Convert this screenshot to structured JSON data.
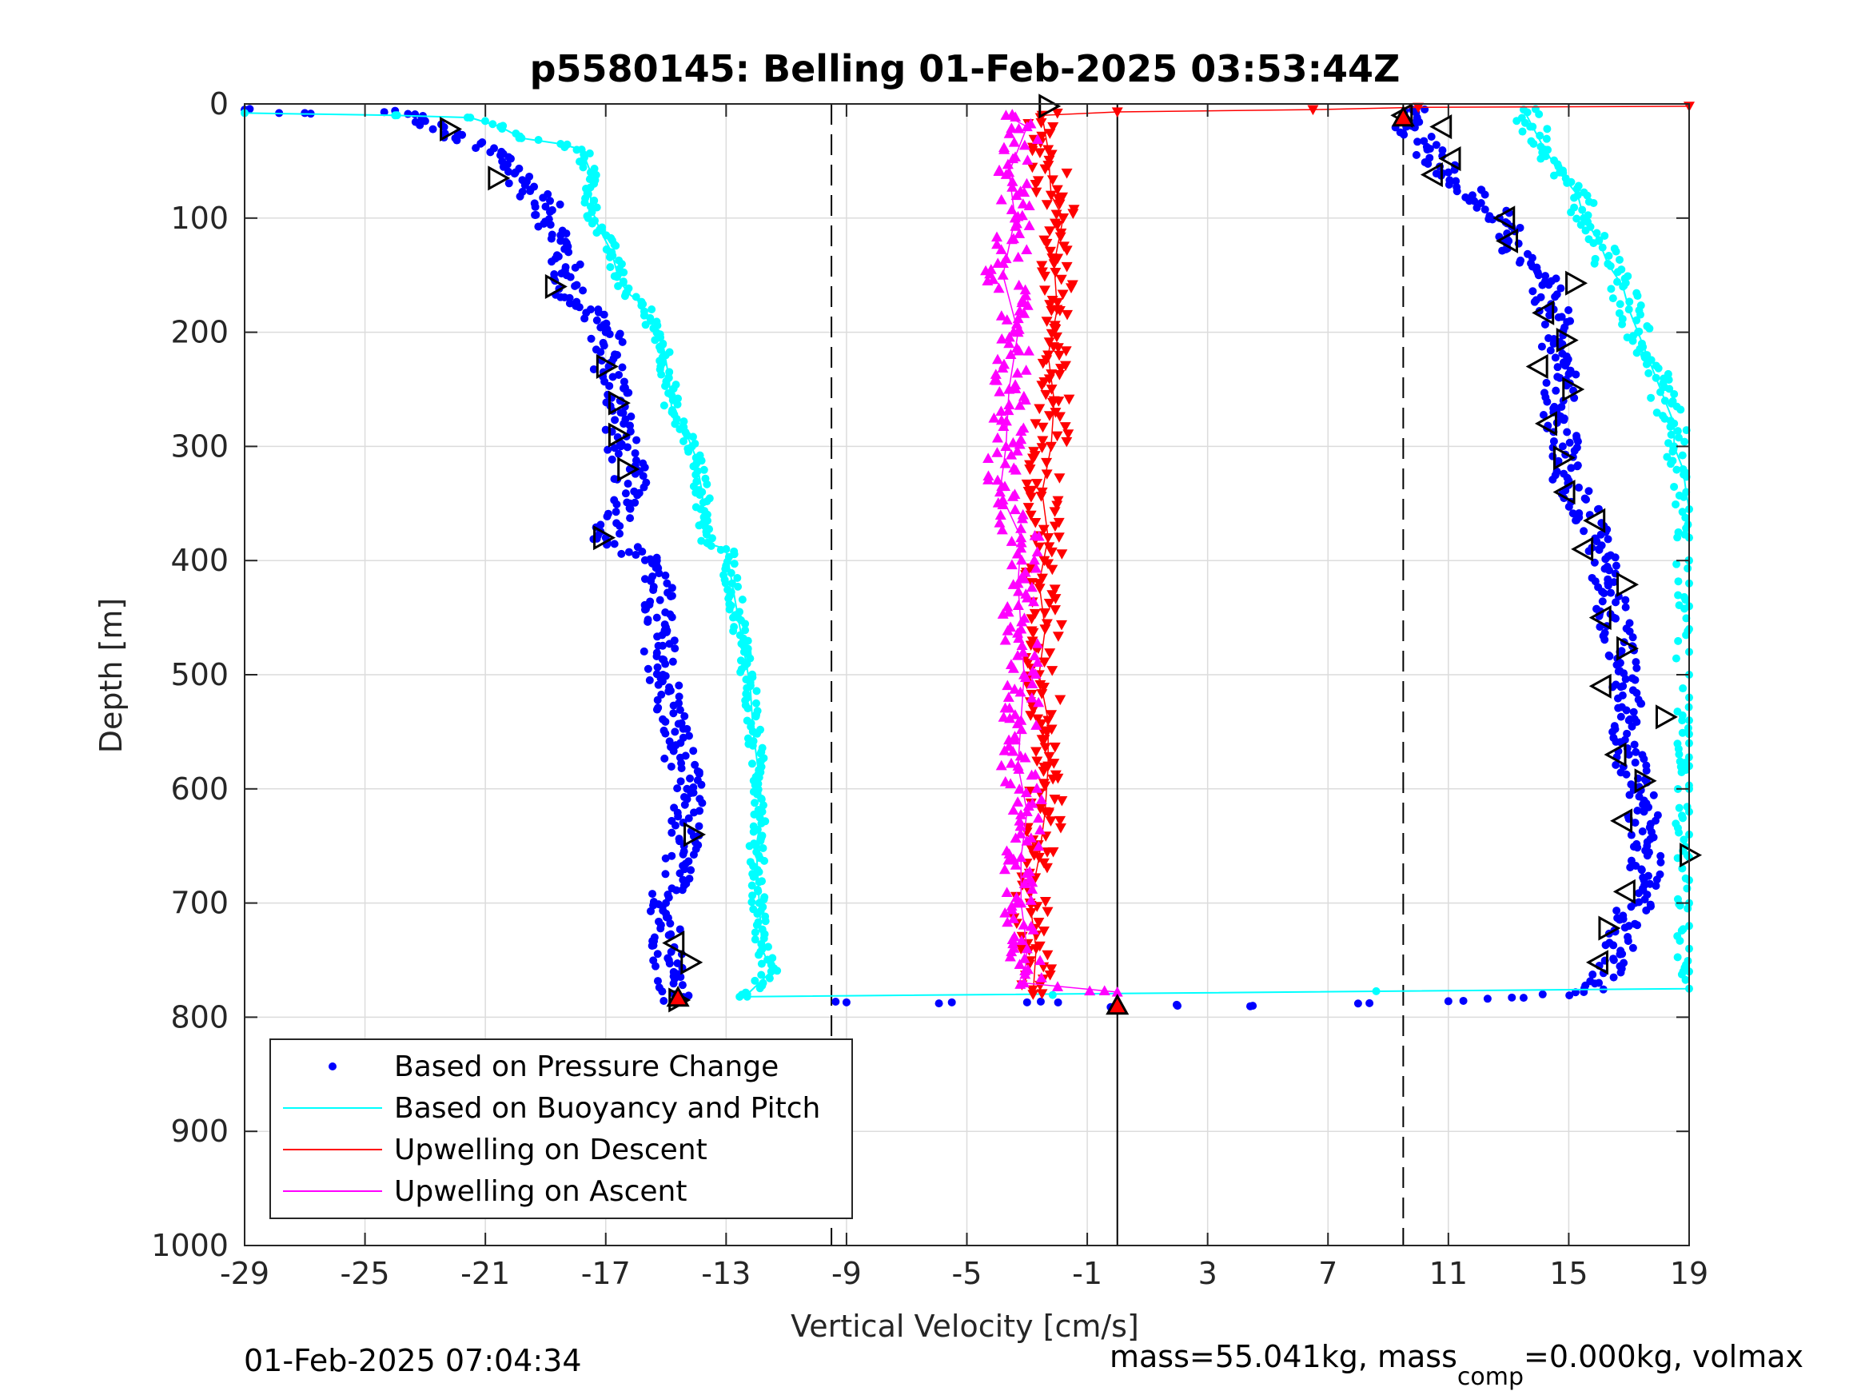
{
  "chart_data": {
    "type": "scatter",
    "title": "p5580145: Belling 01-Feb-2025 03:53:44Z",
    "xlabel": "Vertical Velocity [cm/s]",
    "ylabel": "Depth [m]",
    "xlim": [
      -29,
      19
    ],
    "ylim": [
      0,
      1000
    ],
    "y_reversed": true,
    "grid": true,
    "xticks": [
      -29,
      -25,
      -21,
      -17,
      -13,
      -9,
      -5,
      -1,
      3,
      7,
      11,
      15,
      19
    ],
    "xtick_labels": [
      "-29",
      "-25",
      "-21",
      "-17",
      "-13",
      "-9",
      "-5",
      "-1",
      "3",
      "7",
      "11",
      "15",
      "19"
    ],
    "yticks": [
      0,
      100,
      200,
      300,
      400,
      500,
      600,
      700,
      800,
      900,
      1000
    ],
    "ytick_labels": [
      "0",
      "100",
      "200",
      "300",
      "400",
      "500",
      "600",
      "700",
      "800",
      "900",
      "1000"
    ],
    "reference_lines": {
      "solid_x": 0,
      "dashed_x": [
        -9.5,
        9.5
      ]
    },
    "legend": {
      "placement": "bottom-left",
      "entries": [
        {
          "label": "Based on Pressure Change",
          "color": "#0000ff",
          "marker": "dot"
        },
        {
          "label": "Based on Buoyancy and Pitch",
          "color": "#00ffff",
          "marker": "line"
        },
        {
          "label": "Upwelling on Descent",
          "color": "#ff0000",
          "marker": "line"
        },
        {
          "label": "Upwelling on Ascent",
          "color": "#ff00ff",
          "marker": "line"
        }
      ]
    },
    "series": [
      {
        "key": "pressure_descent",
        "color": "#0000ff",
        "marker": "dot",
        "points": [
          [
            -29,
            5
          ],
          [
            -27,
            8
          ],
          [
            -24,
            6
          ],
          [
            -23,
            15
          ],
          [
            -22,
            30
          ],
          [
            -20.5,
            45
          ],
          [
            -20,
            60
          ],
          [
            -19.5,
            75
          ],
          [
            -19,
            90
          ],
          [
            -18.5,
            120
          ],
          [
            -18.3,
            150
          ],
          [
            -18.2,
            170
          ],
          [
            -17.5,
            180
          ],
          [
            -17,
            200
          ],
          [
            -16.9,
            230
          ],
          [
            -16.5,
            260
          ],
          [
            -16.5,
            300
          ],
          [
            -16.2,
            320
          ],
          [
            -16.2,
            350
          ],
          [
            -17,
            380
          ],
          [
            -16,
            395
          ],
          [
            -15.3,
            400
          ],
          [
            -15.3,
            450
          ],
          [
            -15.1,
            500
          ],
          [
            -14.7,
            550
          ],
          [
            -14.3,
            600
          ],
          [
            -14.4,
            650
          ],
          [
            -15,
            700
          ],
          [
            -14.9,
            750
          ],
          [
            -14.6,
            785
          ]
        ]
      },
      {
        "key": "pressure_ascent",
        "color": "#0000ff",
        "marker": "dot",
        "points": [
          [
            -9,
            787
          ],
          [
            -5.5,
            787
          ],
          [
            -3,
            787
          ],
          [
            0,
            790
          ],
          [
            2,
            790
          ],
          [
            4.5,
            790
          ],
          [
            8,
            788
          ],
          [
            11,
            786
          ],
          [
            13.5,
            783
          ],
          [
            15.5,
            778
          ],
          [
            16,
            770
          ],
          [
            16.5,
            750
          ],
          [
            17,
            720
          ],
          [
            17.2,
            700
          ],
          [
            17.5,
            680
          ],
          [
            17.6,
            650
          ],
          [
            17.5,
            620
          ],
          [
            17.3,
            600
          ],
          [
            17,
            570
          ],
          [
            17,
            540
          ],
          [
            16.8,
            510
          ],
          [
            16.7,
            480
          ],
          [
            16.5,
            450
          ],
          [
            16.3,
            420
          ],
          [
            16,
            390
          ],
          [
            15.7,
            360
          ],
          [
            15,
            330
          ],
          [
            14.8,
            300
          ],
          [
            14.6,
            270
          ],
          [
            14.7,
            240
          ],
          [
            14.5,
            210
          ],
          [
            14.5,
            180
          ],
          [
            14,
            150
          ],
          [
            13,
            120
          ],
          [
            12.7,
            100
          ],
          [
            11.8,
            80
          ],
          [
            11,
            60
          ],
          [
            10.3,
            40
          ],
          [
            9.6,
            20
          ],
          [
            9.8,
            5
          ]
        ]
      },
      {
        "key": "buoyancy_descent",
        "color": "#00ffff",
        "marker": "line",
        "points": [
          [
            -29,
            8
          ],
          [
            -24,
            10
          ],
          [
            -21.5,
            12
          ],
          [
            -20.5,
            20
          ],
          [
            -19.8,
            30
          ],
          [
            -18.5,
            35
          ],
          [
            -17.8,
            40
          ],
          [
            -17.5,
            60
          ],
          [
            -17.5,
            90
          ],
          [
            -17.2,
            110
          ],
          [
            -16.8,
            130
          ],
          [
            -16.6,
            150
          ],
          [
            -16.3,
            165
          ],
          [
            -15.8,
            175
          ],
          [
            -15.5,
            190
          ],
          [
            -15.1,
            210
          ],
          [
            -14.9,
            240
          ],
          [
            -14.8,
            270
          ],
          [
            -14.3,
            290
          ],
          [
            -14,
            310
          ],
          [
            -13.8,
            340
          ],
          [
            -13.7,
            370
          ],
          [
            -13.6,
            385
          ],
          [
            -13,
            390
          ],
          [
            -12.8,
            420
          ],
          [
            -12.6,
            450
          ],
          [
            -12.4,
            480
          ],
          [
            -12.2,
            510
          ],
          [
            -12.1,
            550
          ],
          [
            -11.9,
            590
          ],
          [
            -11.8,
            620
          ],
          [
            -12,
            650
          ],
          [
            -11.9,
            700
          ],
          [
            -11.8,
            740
          ],
          [
            -11.5,
            760
          ],
          [
            -12.3,
            780
          ]
        ]
      },
      {
        "key": "buoyancy_ascent",
        "color": "#00ffff",
        "marker": "line",
        "points": [
          [
            -12.3,
            782
          ],
          [
            19,
            775
          ],
          [
            19,
            760
          ],
          [
            19,
            740
          ],
          [
            19,
            720
          ],
          [
            19,
            700
          ],
          [
            19,
            680
          ],
          [
            19,
            660
          ],
          [
            19,
            640
          ],
          [
            19,
            620
          ],
          [
            19,
            600
          ],
          [
            19,
            580
          ],
          [
            19,
            560
          ],
          [
            19,
            540
          ],
          [
            19,
            520
          ],
          [
            19,
            500
          ],
          [
            19,
            480
          ],
          [
            19,
            460
          ],
          [
            19,
            440
          ],
          [
            19,
            420
          ],
          [
            19,
            400
          ],
          [
            19,
            380
          ],
          [
            19,
            355
          ],
          [
            18.9,
            340
          ],
          [
            18.8,
            320
          ],
          [
            18.5,
            300
          ],
          [
            18.5,
            280
          ],
          [
            18.2,
            260
          ],
          [
            17.9,
            240
          ],
          [
            17.6,
            220
          ],
          [
            17.3,
            200
          ],
          [
            17,
            180
          ],
          [
            16.8,
            160
          ],
          [
            16.3,
            140
          ],
          [
            16,
            120
          ],
          [
            15.5,
            100
          ],
          [
            15.3,
            80
          ],
          [
            14.7,
            60
          ],
          [
            14.2,
            40
          ],
          [
            13.8,
            20
          ],
          [
            13.5,
            5
          ]
        ]
      },
      {
        "key": "upwelling_descent",
        "color": "#ff0000",
        "marker": "triangle-down",
        "points": [
          [
            19,
            2
          ],
          [
            10,
            3
          ],
          [
            6.5,
            5
          ],
          [
            0,
            7
          ],
          [
            -2.5,
            10
          ],
          [
            -2.3,
            40
          ],
          [
            -2.2,
            80
          ],
          [
            -1.8,
            100
          ],
          [
            -2.1,
            140
          ],
          [
            -2,
            180
          ],
          [
            -2.3,
            220
          ],
          [
            -2.1,
            260
          ],
          [
            -2.2,
            300
          ],
          [
            -2.5,
            340
          ],
          [
            -2.3,
            380
          ],
          [
            -2.6,
            420
          ],
          [
            -2.4,
            460
          ],
          [
            -2.6,
            500
          ],
          [
            -2.3,
            540
          ],
          [
            -2.3,
            580
          ],
          [
            -2.4,
            620
          ],
          [
            -2.6,
            660
          ],
          [
            -2.9,
            700
          ],
          [
            -2.7,
            740
          ],
          [
            -2.8,
            780
          ]
        ]
      },
      {
        "key": "upwelling_ascent",
        "color": "#ff00ff",
        "marker": "triangle-up",
        "points": [
          [
            -3.7,
            10
          ],
          [
            -3,
            20
          ],
          [
            -3.6,
            60
          ],
          [
            -3.4,
            100
          ],
          [
            -3.8,
            150
          ],
          [
            -3.3,
            200
          ],
          [
            -3.6,
            250
          ],
          [
            -3.7,
            300
          ],
          [
            -3.9,
            340
          ],
          [
            -3.2,
            380
          ],
          [
            -3.3,
            420
          ],
          [
            -3.2,
            460
          ],
          [
            -3.1,
            500
          ],
          [
            -3.2,
            540
          ],
          [
            -3.3,
            580
          ],
          [
            -3,
            620
          ],
          [
            -3.2,
            660
          ],
          [
            -3.2,
            700
          ],
          [
            -3,
            740
          ],
          [
            -3.1,
            770
          ],
          [
            0,
            778
          ]
        ]
      },
      {
        "key": "heading_right",
        "color": "#000000",
        "marker": "triangle-right-open",
        "points": [
          [
            -22.2,
            22
          ],
          [
            -20.6,
            65
          ],
          [
            -18.7,
            160
          ],
          [
            -17,
            230
          ],
          [
            -16.6,
            262
          ],
          [
            -16.6,
            290
          ],
          [
            -16.3,
            320
          ],
          [
            -17.1,
            380
          ],
          [
            -14.1,
            640
          ],
          [
            -14.2,
            752
          ],
          [
            -14.6,
            785
          ],
          [
            15.2,
            157
          ],
          [
            14.9,
            207
          ],
          [
            15.1,
            250
          ],
          [
            14.8,
            310
          ],
          [
            16.9,
            421
          ],
          [
            16.9,
            477
          ],
          [
            18.2,
            537
          ],
          [
            17.5,
            593
          ],
          [
            19,
            658
          ],
          [
            16.3,
            722
          ],
          [
            -2.3,
            2
          ]
        ]
      },
      {
        "key": "heading_left",
        "color": "#000000",
        "marker": "triangle-left-open",
        "points": [
          [
            -14.7,
            735
          ],
          [
            9.5,
            10
          ],
          [
            10.8,
            20
          ],
          [
            11.1,
            48
          ],
          [
            10.5,
            62
          ],
          [
            12.9,
            100
          ],
          [
            13,
            120
          ],
          [
            14.2,
            183
          ],
          [
            14,
            230
          ],
          [
            14.3,
            280
          ],
          [
            14.9,
            340
          ],
          [
            15.9,
            365
          ],
          [
            15.5,
            390
          ],
          [
            16.1,
            450
          ],
          [
            16.1,
            510
          ],
          [
            16.6,
            570
          ],
          [
            16.8,
            628
          ],
          [
            16.9,
            690
          ],
          [
            16,
            752
          ]
        ]
      },
      {
        "key": "endpoints",
        "color": "#ff0000",
        "marker": "triangle-up-filled",
        "points": [
          [
            0,
            790
          ],
          [
            -14.6,
            783
          ],
          [
            9.5,
            12
          ]
        ]
      }
    ]
  },
  "footer": {
    "timestamp": "01-Feb-2025 07:04:34",
    "mass_text_start": "mass=55.041kg, mass",
    "mass_text_sub": "comp",
    "mass_text_end": "=0.000kg, volmax"
  }
}
